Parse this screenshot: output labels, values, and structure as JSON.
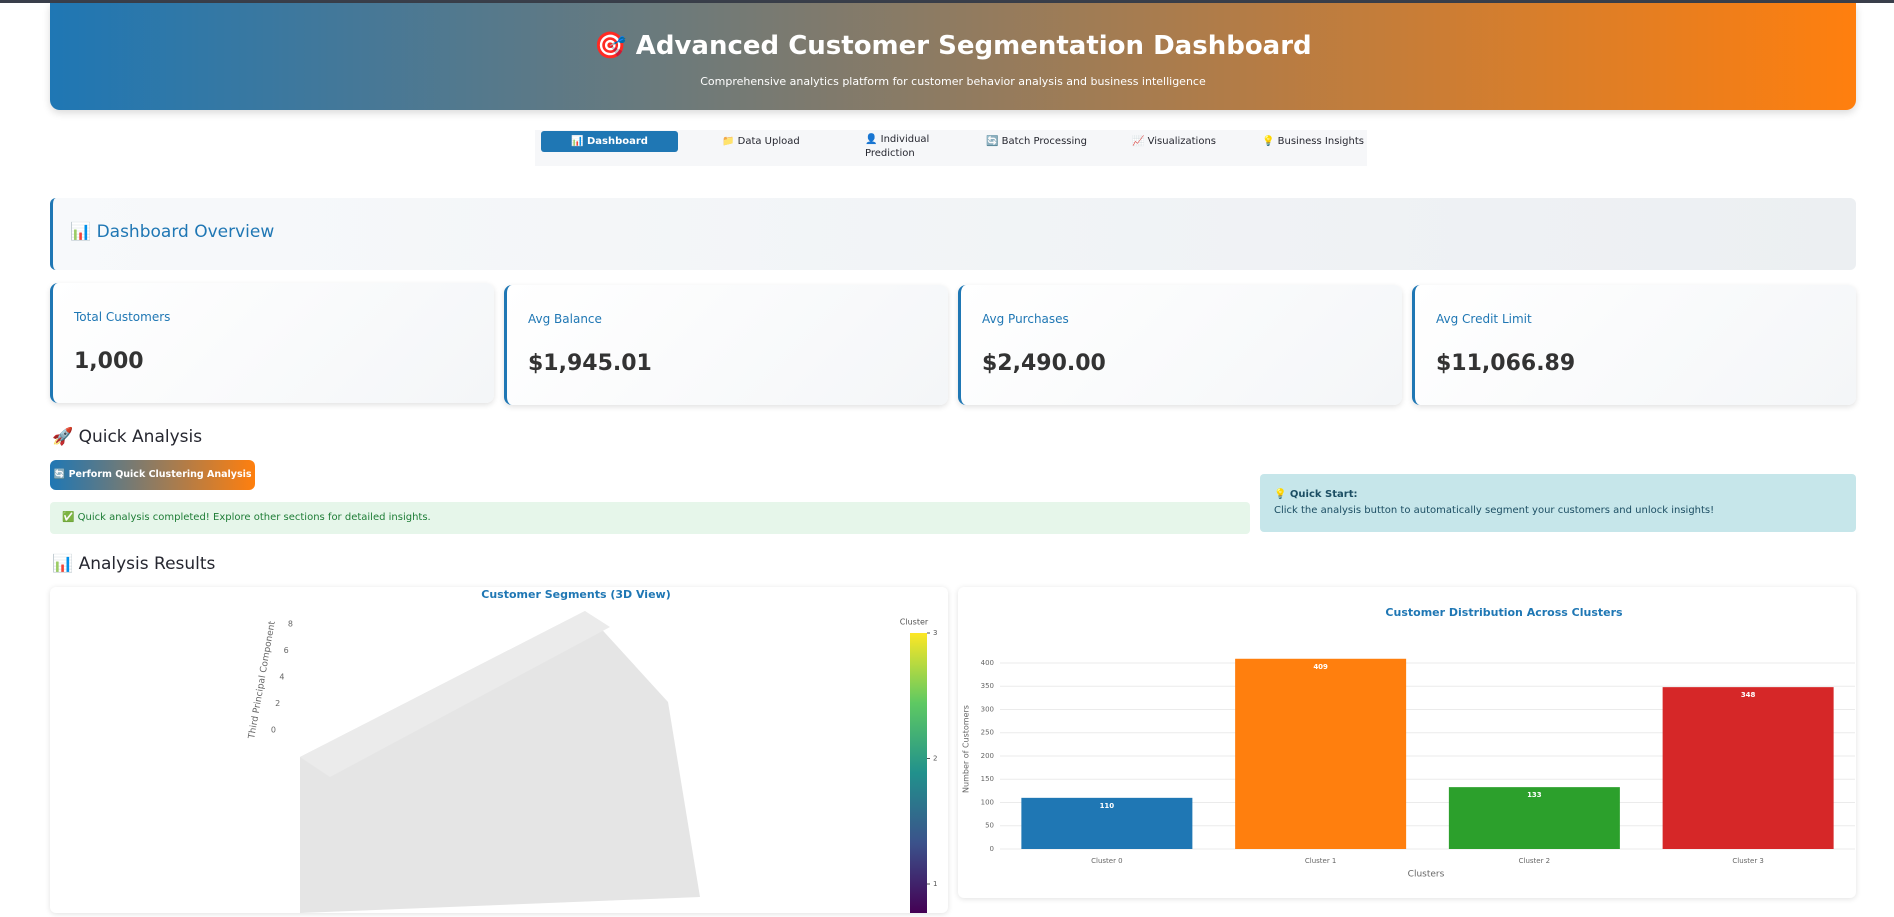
{
  "header": {
    "title": "🎯 Advanced Customer Segmentation Dashboard",
    "subtitle": "Comprehensive analytics platform for customer behavior analysis and business intelligence"
  },
  "nav": {
    "tabs": [
      "📊 Dashboard",
      "📁 Data Upload",
      "👤 Individual Prediction",
      "🔄 Batch Processing",
      "📈 Visualizations",
      "💡 Business Insights"
    ]
  },
  "overview": {
    "title": "📊 Dashboard Overview"
  },
  "metrics": [
    {
      "label": "Total Customers",
      "value": "1,000"
    },
    {
      "label": "Avg Balance",
      "value": "$1,945.01"
    },
    {
      "label": "Avg Purchases",
      "value": "$2,490.00"
    },
    {
      "label": "Avg Credit Limit",
      "value": "$11,066.89"
    }
  ],
  "quick_analysis": {
    "title": "🚀 Quick Analysis",
    "button": "🔄 Perform Quick Clustering Analysis",
    "success": "✅ Quick analysis completed! Explore other sections for detailed insights.",
    "tip_title": "💡 Quick Start:",
    "tip_text": "Click the analysis button to automatically segment your customers and unlock insights!"
  },
  "results": {
    "title": "📊 Analysis Results"
  },
  "chart_data": [
    {
      "type": "scatter3d",
      "title": "Customer Segments (3D View)",
      "zaxis_title": "Third Principal Component",
      "zticks": [
        0,
        2,
        4,
        6,
        8
      ],
      "colorbar_title": "Cluster",
      "clim": [
        0,
        3
      ],
      "colorbar_ticks": [
        1,
        2,
        3
      ]
    },
    {
      "type": "bar",
      "title": "Customer Distribution Across Clusters",
      "xlabel": "Clusters",
      "ylabel": "Number of Customers",
      "categories": [
        "Cluster 0",
        "Cluster 1",
        "Cluster 2",
        "Cluster 3"
      ],
      "values": [
        110,
        409,
        133,
        348
      ],
      "colors": [
        "#1f77b4",
        "#ff7f0e",
        "#2ca02c",
        "#d62728"
      ],
      "ylim": [
        0,
        430
      ],
      "yticks": [
        0,
        50,
        100,
        150,
        200,
        250,
        300,
        350,
        400
      ],
      "grid": true
    }
  ]
}
